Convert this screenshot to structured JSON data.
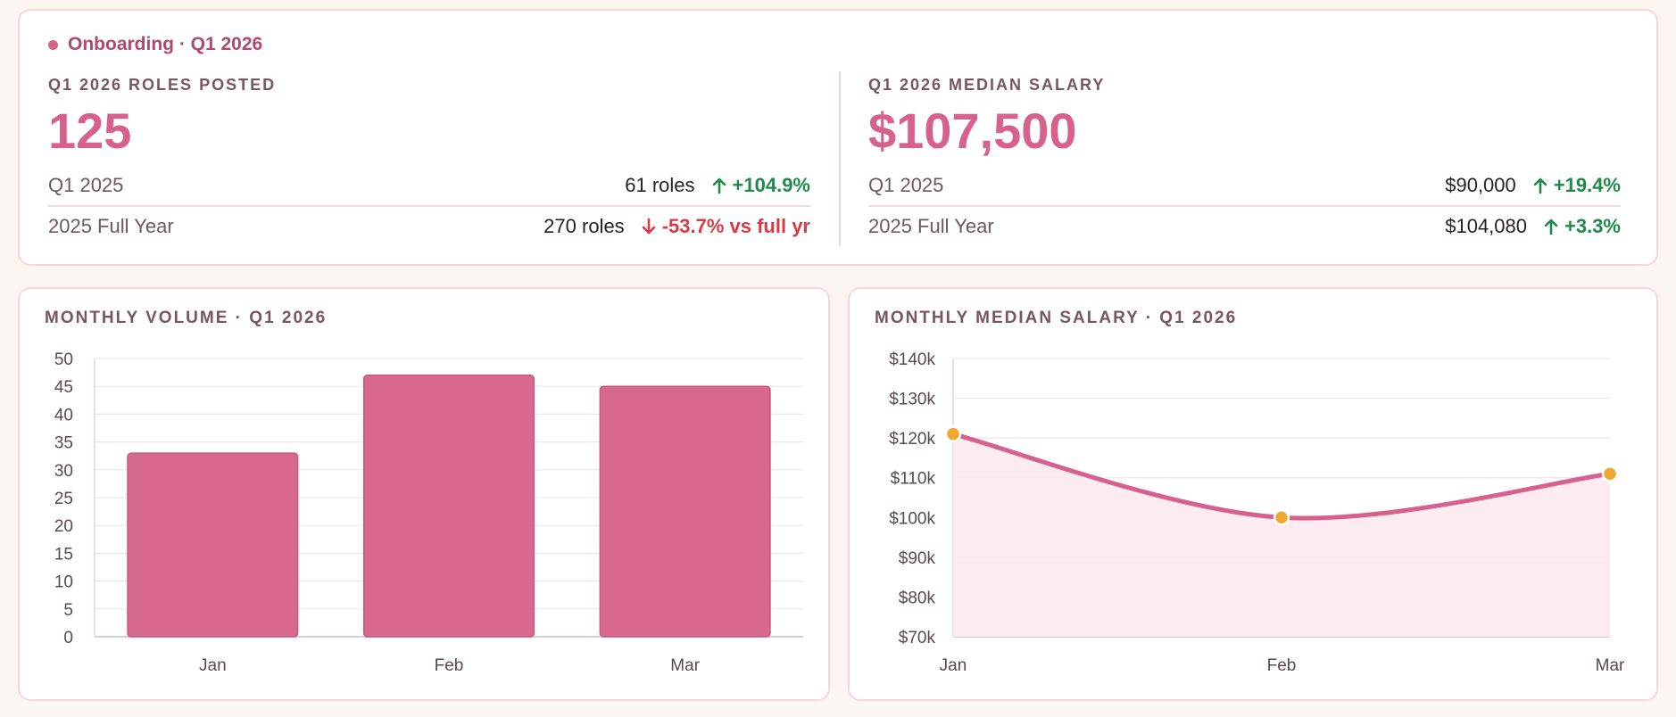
{
  "header": {
    "badge": "Onboarding · Q1 2026"
  },
  "roles": {
    "label": "Q1 2026 ROLES POSTED",
    "value": "125",
    "rows": [
      {
        "label": "Q1 2025",
        "value": "61 roles",
        "delta": "+104.9%",
        "direction": "up"
      },
      {
        "label": "2025 Full Year",
        "value": "270 roles",
        "delta": "-53.7% vs full yr",
        "direction": "down"
      }
    ]
  },
  "salary": {
    "label": "Q1 2026 MEDIAN SALARY",
    "value": "$107,500",
    "rows": [
      {
        "label": "Q1 2025",
        "value": "$90,000",
        "delta": "+19.4%",
        "direction": "up"
      },
      {
        "label": "2025 Full Year",
        "value": "$104,080",
        "delta": "+3.3%",
        "direction": "up"
      }
    ]
  },
  "colors": {
    "accent": "#d8608c",
    "bar": "#d8688f",
    "point": "#f0a830",
    "up": "#1e8a4c",
    "down": "#d93a48"
  },
  "chart_data": [
    {
      "type": "bar",
      "title": "MONTHLY VOLUME · Q1 2026",
      "categories": [
        "Jan",
        "Feb",
        "Mar"
      ],
      "values": [
        33,
        47,
        45
      ],
      "ylim": [
        0,
        50
      ],
      "yticks": [
        0,
        5,
        10,
        15,
        20,
        25,
        30,
        35,
        40,
        45,
        50
      ],
      "grid": true
    },
    {
      "type": "area",
      "title": "MONTHLY MEDIAN SALARY · Q1 2026",
      "categories": [
        "Jan",
        "Feb",
        "Mar"
      ],
      "values": [
        121000,
        100000,
        111000
      ],
      "ylim": [
        70000,
        140000
      ],
      "yticks": [
        70000,
        80000,
        90000,
        100000,
        110000,
        120000,
        130000,
        140000
      ],
      "ytick_labels": [
        "$70k",
        "$80k",
        "$90k",
        "$100k",
        "$110k",
        "$120k",
        "$130k",
        "$140k"
      ],
      "grid": true
    }
  ]
}
